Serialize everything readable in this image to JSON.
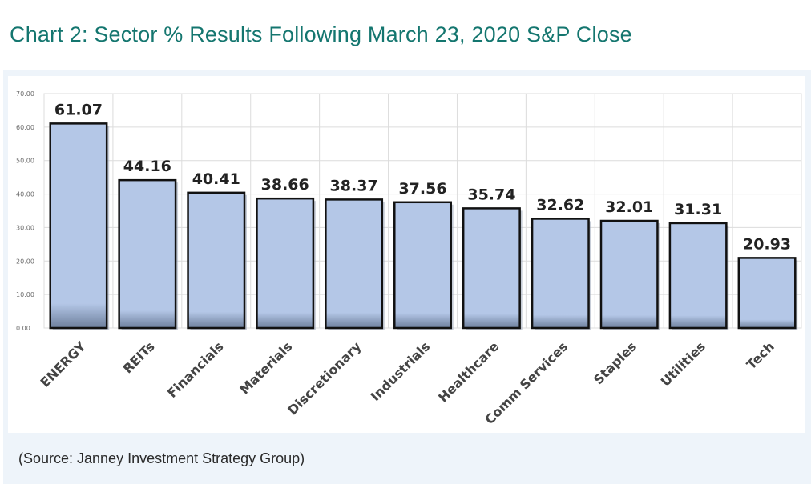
{
  "header": {
    "title": "Chart 2:  Sector % Results Following March 23, 2020 S&P Close"
  },
  "footer": {
    "source": "(Source: Janney Investment Strategy Group)"
  },
  "colors": {
    "title": "#14766f",
    "bar_fill": "#b4c7e7",
    "bar_edge": "#111111",
    "panel_bg": "#eef4fa",
    "grid": "#dcdcdc"
  },
  "chart_data": {
    "type": "bar",
    "title": "",
    "xlabel": "",
    "ylabel": "",
    "categories": [
      "ENERGY",
      "REITs",
      "Financials",
      "Materials",
      "Discretionary",
      "Industrials",
      "Healthcare",
      "Comm Services",
      "Staples",
      "Utilities",
      "Tech"
    ],
    "values": [
      61.07,
      44.16,
      40.41,
      38.66,
      38.37,
      37.56,
      35.74,
      32.62,
      32.01,
      31.31,
      20.93
    ],
    "value_labels": [
      "61.07",
      "44.16",
      "40.41",
      "38.66",
      "38.37",
      "37.56",
      "35.74",
      "32.62",
      "32.01",
      "31.31",
      "20.93"
    ],
    "ylim": [
      0,
      70
    ],
    "yticks": [
      "0.00",
      "10.00",
      "20.00",
      "30.00",
      "40.00",
      "50.00",
      "60.00",
      "70.00"
    ],
    "grid": true,
    "legend": "none"
  }
}
